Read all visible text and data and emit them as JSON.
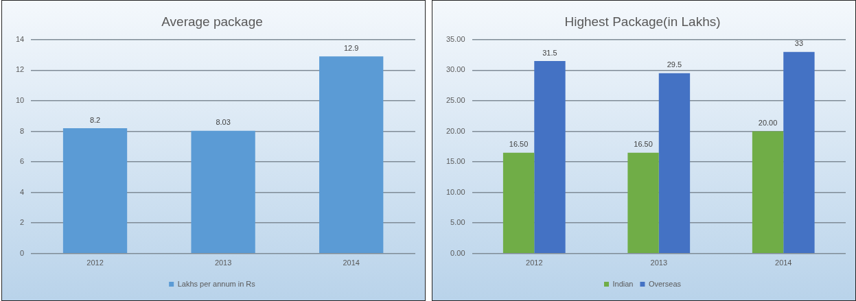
{
  "chart_data": [
    {
      "type": "bar",
      "title": "Average package",
      "categories": [
        "2012",
        "2013",
        "2014"
      ],
      "series": [
        {
          "name": "Lakhs per annum in Rs",
          "color": "#5b9bd5",
          "values": [
            8.2,
            8.03,
            12.9
          ]
        }
      ],
      "ylim": [
        0,
        14
      ],
      "yticks": [
        0,
        2,
        4,
        6,
        8,
        10,
        12,
        14
      ],
      "grid": "y",
      "legend": "bottom",
      "data_labels": true
    },
    {
      "type": "bar",
      "title": "Highest Package(in Lakhs)",
      "categories": [
        "2012",
        "2013",
        "2014"
      ],
      "series": [
        {
          "name": "Indian",
          "color": "#70ad47",
          "values": [
            16.5,
            16.5,
            20
          ],
          "value_labels": [
            "16.50",
            "16.50",
            "20.00"
          ]
        },
        {
          "name": "Overseas",
          "color": "#4472c4",
          "values": [
            31.5,
            29.5,
            33
          ],
          "value_labels": [
            "31.5",
            "29.5",
            "33"
          ]
        }
      ],
      "ylim": [
        0,
        35
      ],
      "yticks": [
        {
          "value": 0,
          "label": "0.00"
        },
        {
          "value": 5,
          "label": "5.00"
        },
        {
          "value": 10,
          "label": "10.00"
        },
        {
          "value": 15,
          "label": "15.00"
        },
        {
          "value": 20,
          "label": "20.00"
        },
        {
          "value": 25,
          "label": "25.00"
        },
        {
          "value": 30,
          "label": "30.00"
        },
        {
          "value": 35,
          "label": "35.00"
        }
      ],
      "grid": "y",
      "legend": "bottom"
    }
  ]
}
